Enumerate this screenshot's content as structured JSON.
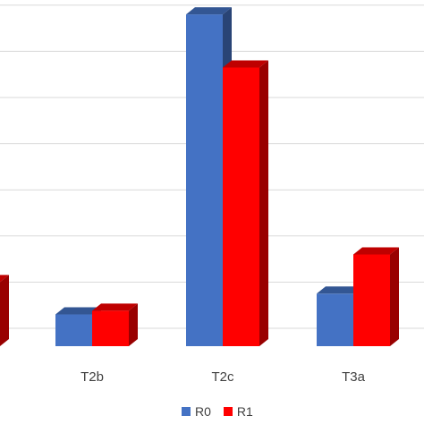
{
  "chart_data": {
    "type": "bar",
    "categories": [
      "",
      "T2b",
      "T2c",
      "T3a"
    ],
    "series": [
      {
        "name": "R0",
        "color": "#4472C4",
        "values": [
          null,
          3,
          68,
          7.5
        ]
      },
      {
        "name": "R1",
        "color": "#FF0000",
        "values": [
          10,
          3.8,
          56.5,
          16
        ]
      }
    ],
    "ylim": [
      0,
      75
    ],
    "grid": true,
    "legend_position": "bottom",
    "style": "3d-column"
  }
}
